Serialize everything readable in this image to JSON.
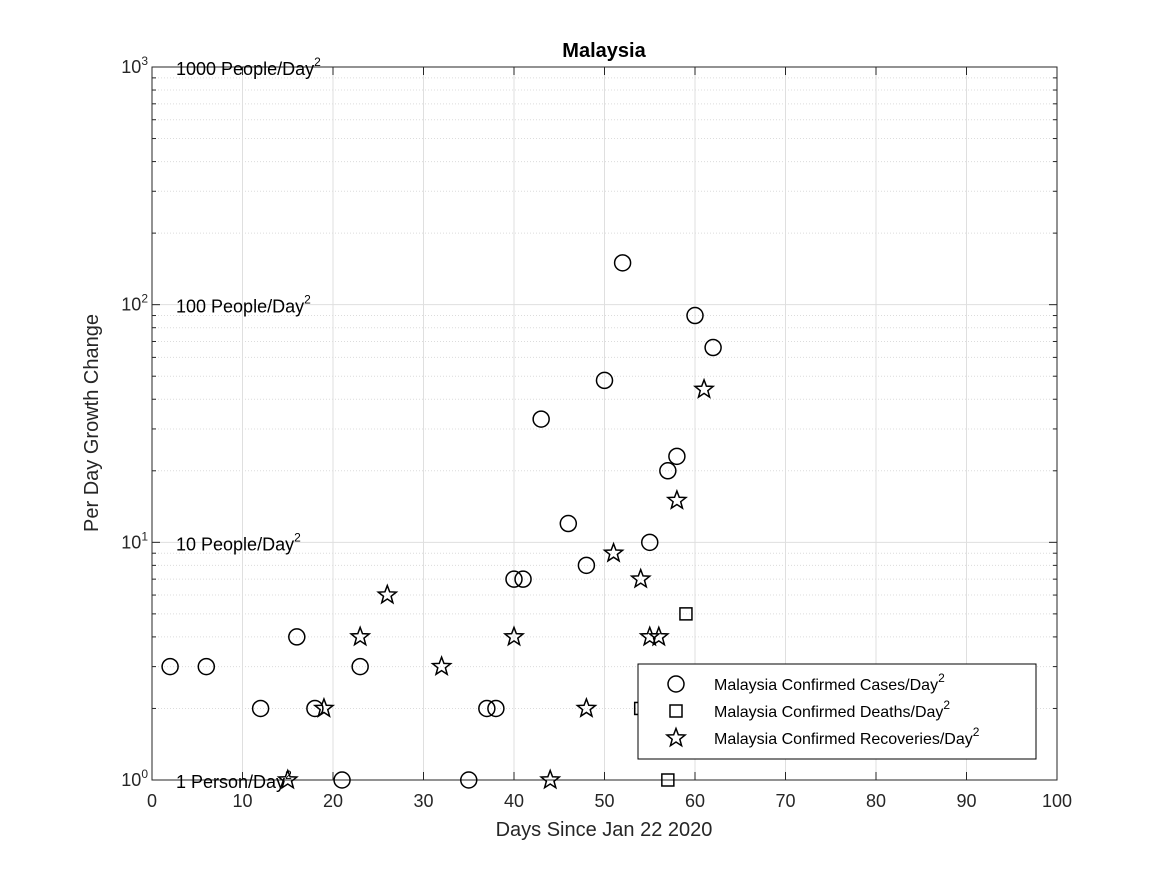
{
  "chart_data": {
    "type": "scatter",
    "title": "Malaysia",
    "xlabel": "Days Since Jan 22 2020",
    "ylabel": "Per Day Growth Change",
    "xlim": [
      0,
      100
    ],
    "ylim": [
      1,
      1000
    ],
    "yscale": "log",
    "grid": true,
    "legend_position": "bottom-right",
    "x_ticks": [
      "0",
      "10",
      "20",
      "30",
      "40",
      "50",
      "60",
      "70",
      "80",
      "90",
      "100"
    ],
    "y_ticks": [
      {
        "value": 1,
        "base": "10",
        "exp": "0"
      },
      {
        "value": 10,
        "base": "10",
        "exp": "1"
      },
      {
        "value": 100,
        "base": "10",
        "exp": "2"
      },
      {
        "value": 1000,
        "base": "10",
        "exp": "3"
      }
    ],
    "annotations": [
      {
        "y": 1000,
        "text": "1000 People/Day",
        "sup": "2"
      },
      {
        "y": 100,
        "text": "100 People/Day",
        "sup": "2"
      },
      {
        "y": 10,
        "text": "10 People/Day",
        "sup": "2"
      },
      {
        "y": 1,
        "text": "1 Person/Day",
        "sup": "2"
      }
    ],
    "series": [
      {
        "name": "Malaysia Confirmed Cases/Day",
        "name_sup": "2",
        "marker": "circle",
        "points": [
          [
            2,
            3
          ],
          [
            6,
            3
          ],
          [
            12,
            2
          ],
          [
            16,
            4
          ],
          [
            18,
            2
          ],
          [
            21,
            1
          ],
          [
            23,
            3
          ],
          [
            35,
            1
          ],
          [
            37,
            2
          ],
          [
            38,
            2
          ],
          [
            40,
            7
          ],
          [
            41,
            7
          ],
          [
            43,
            33
          ],
          [
            46,
            12
          ],
          [
            48,
            8
          ],
          [
            50,
            48
          ],
          [
            52,
            150
          ],
          [
            55,
            10
          ],
          [
            57,
            20
          ],
          [
            58,
            23
          ],
          [
            60,
            90
          ],
          [
            62,
            66
          ]
        ]
      },
      {
        "name": "Malaysia Confirmed Deaths/Day",
        "name_sup": "2",
        "marker": "square",
        "points": [
          [
            54,
            2
          ],
          [
            57,
            1
          ],
          [
            59,
            5
          ]
        ]
      },
      {
        "name": "Malaysia Confirmed Recoveries/Day",
        "name_sup": "2",
        "marker": "star",
        "points": [
          [
            15,
            1
          ],
          [
            19,
            2
          ],
          [
            23,
            4
          ],
          [
            26,
            6
          ],
          [
            32,
            3
          ],
          [
            40,
            4
          ],
          [
            44,
            1
          ],
          [
            48,
            2
          ],
          [
            51,
            9
          ],
          [
            54,
            7
          ],
          [
            55,
            4
          ],
          [
            56,
            4
          ],
          [
            58,
            15
          ],
          [
            61,
            44
          ]
        ]
      }
    ]
  }
}
